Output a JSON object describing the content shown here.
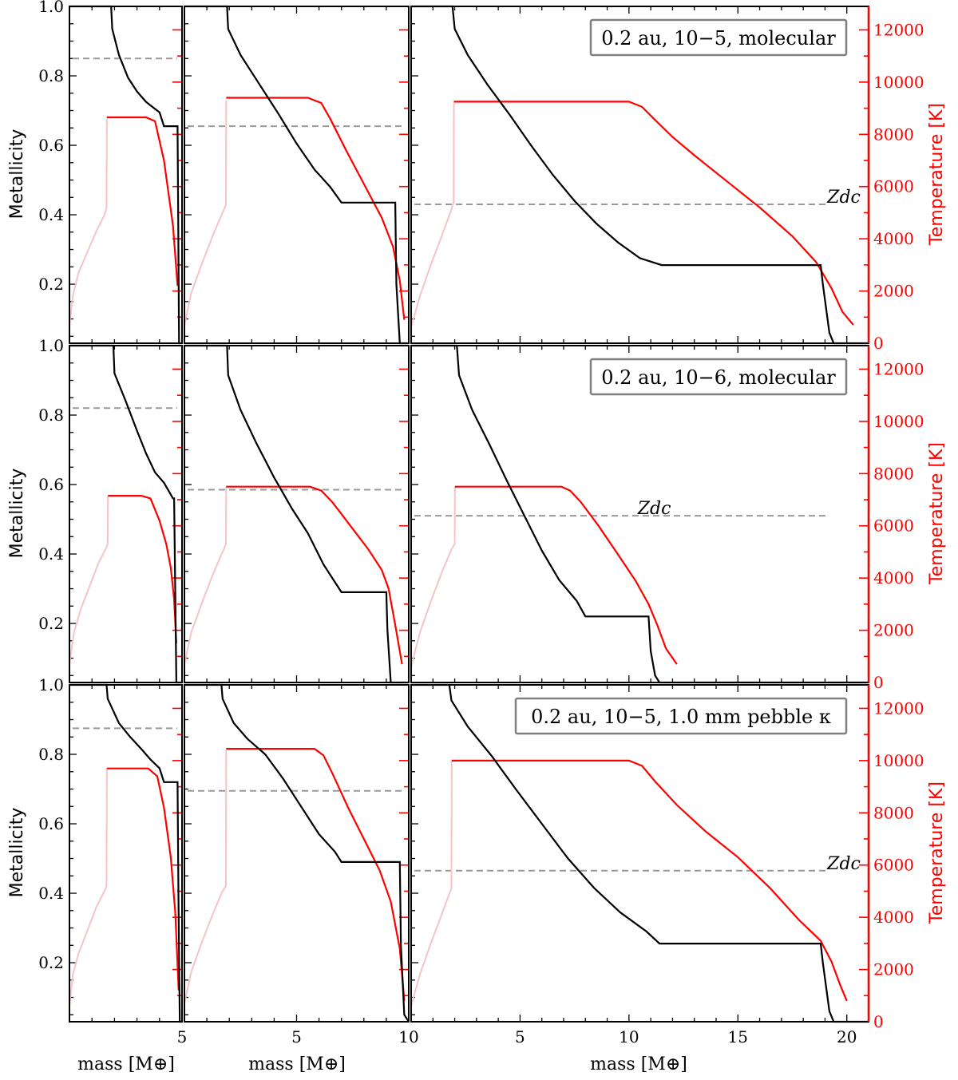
{
  "figure": {
    "y_left_label": "Metallicity",
    "y_right_label": "Temperature [K]",
    "x_label": "mass [M⊕]",
    "zdc_label": "Zdc",
    "colors": {
      "metallicity": "#000000",
      "temperature": "#ff0000",
      "temperature_early": "#f7c4c4",
      "zdc": "#999999"
    }
  },
  "chart_data": [
    {
      "type": "line",
      "row": 1,
      "annotation": "0.2 au, 10−5, molecular",
      "x_ticks": {
        "col1": [
          5
        ],
        "col2": [
          5,
          10
        ],
        "col3": [
          5,
          10,
          15,
          20
        ]
      },
      "xlim": {
        "col1": [
          0,
          5
        ],
        "col2": [
          0,
          10
        ],
        "col3": [
          0,
          21
        ]
      },
      "ylim_left": [
        0.03,
        1.0
      ],
      "ylim_right": [
        0,
        12900
      ],
      "y_left_ticks": [
        0.2,
        0.4,
        0.6,
        0.8,
        1.0
      ],
      "y_right_ticks": [
        0,
        2000,
        4000,
        6000,
        8000,
        10000,
        12000
      ],
      "zdc": {
        "col1": 0.85,
        "col2": 0.655,
        "col3": 0.43
      },
      "series": [
        {
          "column": 1,
          "metallicity": {
            "x": [
              0,
              1.85,
              1.9,
              2.2,
              2.6,
              3.0,
              3.4,
              3.7,
              4.0,
              4.2,
              4.8,
              4.83,
              4.87,
              5.0
            ],
            "y": [
              1.0,
              1.0,
              0.935,
              0.86,
              0.795,
              0.755,
              0.725,
              0.71,
              0.695,
              0.655,
              0.655,
              0.4,
              0.03,
              0.03
            ]
          },
          "temperature_early": {
            "x": [
              0,
              0.15,
              0.4,
              0.8,
              1.2,
              1.55,
              1.65,
              1.66
            ],
            "y": [
              700,
              1800,
              2700,
              3500,
              4300,
              4900,
              5200,
              8600
            ]
          },
          "temperature": {
            "x": [
              1.66,
              2.3,
              3.4,
              3.8,
              4.2,
              4.6,
              4.8
            ],
            "y": [
              8650,
              8650,
              8650,
              8500,
              7000,
              4500,
              2200
            ]
          }
        },
        {
          "column": 2,
          "metallicity": {
            "x": [
              0,
              1.9,
              1.95,
              2.5,
              3.3,
              4.2,
              5.0,
              5.8,
              6.5,
              7.0,
              9.4,
              9.45,
              9.6,
              10.0
            ],
            "y": [
              1.0,
              1.0,
              0.935,
              0.86,
              0.78,
              0.69,
              0.605,
              0.53,
              0.48,
              0.435,
              0.435,
              0.2,
              0.03,
              0.03
            ]
          },
          "temperature_early": {
            "x": [
              0,
              0.3,
              0.8,
              1.3,
              1.75,
              1.85,
              1.86
            ],
            "y": [
              700,
              1900,
              3100,
              4200,
              5100,
              5300,
              9300
            ]
          },
          "temperature": {
            "x": [
              1.86,
              3.0,
              5.5,
              6.1,
              6.5,
              7.2,
              8.0,
              8.8,
              9.3,
              9.6,
              9.8
            ],
            "y": [
              9400,
              9400,
              9400,
              9200,
              8600,
              7400,
              6100,
              4800,
              3700,
              2400,
              900
            ]
          }
        },
        {
          "column": 3,
          "metallicity": {
            "x": [
              0,
              1.9,
              2.0,
              2.6,
              3.5,
              4.5,
              5.5,
              6.5,
              7.5,
              8.5,
              9.5,
              10.5,
              11.5,
              18.8,
              18.9,
              19.2,
              19.4,
              21.0
            ],
            "y": [
              1.0,
              1.0,
              0.935,
              0.86,
              0.775,
              0.69,
              0.6,
              0.515,
              0.44,
              0.375,
              0.32,
              0.275,
              0.255,
              0.255,
              0.2,
              0.06,
              0.03,
              0.03
            ]
          },
          "temperature_early": {
            "x": [
              0,
              0.4,
              0.9,
              1.4,
              1.8,
              1.95,
              1.96
            ],
            "y": [
              600,
              1800,
              3000,
              4100,
              5000,
              5400,
              9200
            ]
          },
          "temperature": {
            "x": [
              1.96,
              4.0,
              10.0,
              10.6,
              11.2,
              12.0,
              13.0,
              14.5,
              16.0,
              17.5,
              18.6,
              19.3,
              19.8,
              20.3
            ],
            "y": [
              9250,
              9250,
              9250,
              9050,
              8550,
              7900,
              7200,
              6200,
              5200,
              4100,
              3100,
              2100,
              1200,
              700
            ]
          }
        }
      ]
    },
    {
      "type": "line",
      "row": 2,
      "annotation": "0.2 au, 10−6, molecular",
      "x_ticks": {
        "col1": [
          5
        ],
        "col2": [
          5,
          10
        ],
        "col3": [
          5,
          10,
          15,
          20
        ]
      },
      "xlim": {
        "col1": [
          0,
          5
        ],
        "col2": [
          0,
          10
        ],
        "col3": [
          0,
          21
        ]
      },
      "ylim_left": [
        0.03,
        1.0
      ],
      "ylim_right": [
        0,
        12900
      ],
      "y_left_ticks": [
        0.2,
        0.4,
        0.6,
        0.8,
        1.0
      ],
      "y_right_ticks": [
        0,
        2000,
        4000,
        6000,
        8000,
        10000,
        12000
      ],
      "zdc": {
        "col1": 0.82,
        "col2": 0.585,
        "col3": 0.51
      },
      "series": [
        {
          "column": 1,
          "metallicity": {
            "x": [
              0,
              1.95,
              2.0,
              2.5,
              3.0,
              3.4,
              3.8,
              4.2,
              4.6,
              4.65,
              4.75,
              5.0
            ],
            "y": [
              1.0,
              1.0,
              0.92,
              0.84,
              0.755,
              0.69,
              0.635,
              0.605,
              0.56,
              0.56,
              0.03,
              0.03
            ]
          },
          "temperature_early": {
            "x": [
              0,
              0.2,
              0.5,
              0.9,
              1.3,
              1.6,
              1.7,
              1.71
            ],
            "y": [
              700,
              1900,
              2800,
              3700,
              4600,
              5100,
              5300,
              7150
            ]
          },
          "temperature": {
            "x": [
              1.71,
              2.4,
              3.2,
              3.6,
              4.0,
              4.3,
              4.5,
              4.65,
              4.75
            ],
            "y": [
              7150,
              7150,
              7150,
              7050,
              6200,
              5300,
              4400,
              3200,
              1500
            ]
          }
        },
        {
          "column": 2,
          "metallicity": {
            "x": [
              0,
              1.9,
              1.95,
              2.5,
              3.2,
              4.0,
              4.8,
              5.5,
              6.2,
              7.0,
              9.0,
              9.05,
              9.2,
              10.0
            ],
            "y": [
              1.0,
              1.0,
              0.915,
              0.815,
              0.72,
              0.62,
              0.53,
              0.46,
              0.37,
              0.29,
              0.29,
              0.18,
              0.03,
              0.03
            ]
          },
          "temperature_early": {
            "x": [
              0,
              0.3,
              0.8,
              1.3,
              1.7,
              1.85,
              1.86
            ],
            "y": [
              700,
              1900,
              3100,
              4200,
              5000,
              5300,
              7500
            ]
          },
          "temperature": {
            "x": [
              1.86,
              3.5,
              5.6,
              6.1,
              6.6,
              7.4,
              8.2,
              8.8,
              9.1,
              9.4,
              9.7
            ],
            "y": [
              7500,
              7500,
              7500,
              7350,
              6900,
              6000,
              5100,
              4300,
              3600,
              2200,
              700
            ]
          }
        },
        {
          "column": 3,
          "metallicity": {
            "x": [
              0,
              2.1,
              2.2,
              2.8,
              3.6,
              4.4,
              5.2,
              6.0,
              6.8,
              7.6,
              8.0,
              10.9,
              11.0,
              11.2,
              11.4,
              21.0
            ],
            "y": [
              1.0,
              1.0,
              0.915,
              0.815,
              0.715,
              0.61,
              0.51,
              0.41,
              0.325,
              0.265,
              0.22,
              0.22,
              0.12,
              0.05,
              0.03,
              0.03
            ]
          },
          "temperature_early": {
            "x": [
              0,
              0.4,
              0.9,
              1.4,
              1.85,
              2.0,
              2.01
            ],
            "y": [
              600,
              1900,
              3100,
              4200,
              5100,
              5300,
              7500
            ]
          },
          "temperature": {
            "x": [
              2.01,
              4.0,
              6.9,
              7.3,
              7.8,
              8.6,
              9.5,
              10.3,
              10.9,
              11.3,
              11.7,
              12.2
            ],
            "y": [
              7500,
              7500,
              7500,
              7350,
              6900,
              6000,
              4900,
              3900,
              3000,
              2200,
              1300,
              700
            ]
          }
        }
      ]
    },
    {
      "type": "line",
      "row": 3,
      "annotation": "0.2 au, 10−5, 1.0 mm pebble κ",
      "x_ticks": {
        "col1": [
          5
        ],
        "col2": [
          5,
          10
        ],
        "col3": [
          5,
          10,
          15,
          20
        ]
      },
      "xlim": {
        "col1": [
          0,
          5
        ],
        "col2": [
          0,
          10
        ],
        "col3": [
          0,
          21
        ]
      },
      "ylim_left": [
        0.03,
        1.0
      ],
      "ylim_right": [
        0,
        12900
      ],
      "y_left_ticks": [
        0.2,
        0.4,
        0.6,
        0.8,
        1.0
      ],
      "y_right_ticks": [
        0,
        2000,
        4000,
        6000,
        8000,
        10000,
        12000
      ],
      "x_label": "mass [M⊕]",
      "zdc": {
        "col1": 0.875,
        "col2": 0.695,
        "col3": 0.465
      },
      "series": [
        {
          "column": 1,
          "metallicity": {
            "x": [
              0,
              1.65,
              1.7,
              2.2,
              2.7,
              3.2,
              3.6,
              4.0,
              4.2,
              4.8,
              4.84,
              4.9,
              5.0
            ],
            "y": [
              1.0,
              1.0,
              0.96,
              0.89,
              0.85,
              0.815,
              0.785,
              0.76,
              0.72,
              0.72,
              0.4,
              0.03,
              0.03
            ]
          },
          "temperature_early": {
            "x": [
              0,
              0.15,
              0.4,
              0.8,
              1.2,
              1.55,
              1.65,
              1.66
            ],
            "y": [
              600,
              1800,
              2600,
              3500,
              4400,
              5000,
              5200,
              9700
            ]
          },
          "temperature": {
            "x": [
              1.66,
              2.5,
              3.5,
              3.9,
              4.2,
              4.5,
              4.7,
              4.85
            ],
            "y": [
              9700,
              9700,
              9700,
              9400,
              8200,
              6300,
              4200,
              1200
            ]
          }
        },
        {
          "column": 2,
          "metallicity": {
            "x": [
              0,
              1.65,
              1.7,
              2.2,
              2.8,
              3.6,
              4.4,
              5.2,
              6.0,
              6.7,
              7.0,
              9.6,
              9.65,
              9.8,
              10.0
            ],
            "y": [
              1.0,
              1.0,
              0.96,
              0.89,
              0.845,
              0.8,
              0.73,
              0.65,
              0.57,
              0.52,
              0.49,
              0.49,
              0.25,
              0.05,
              0.03
            ]
          },
          "temperature_early": {
            "x": [
              0,
              0.3,
              0.8,
              1.3,
              1.7,
              1.85,
              1.86
            ],
            "y": [
              700,
              1900,
              3100,
              4200,
              5000,
              5200,
              10400
            ]
          },
          "temperature": {
            "x": [
              1.86,
              3.5,
              5.8,
              6.2,
              6.6,
              7.3,
              8.0,
              8.7,
              9.2,
              9.6,
              9.8
            ],
            "y": [
              10450,
              10450,
              10450,
              10200,
              9500,
              8200,
              7000,
              5800,
              4600,
              2800,
              800
            ]
          }
        },
        {
          "column": 3,
          "metallicity": {
            "x": [
              0,
              1.75,
              1.85,
              2.6,
              3.7,
              4.8,
              6.0,
              7.2,
              8.4,
              9.6,
              10.8,
              11.4,
              18.8,
              18.9,
              19.2,
              19.4,
              21.0
            ],
            "y": [
              1.0,
              1.0,
              0.955,
              0.88,
              0.795,
              0.7,
              0.6,
              0.5,
              0.415,
              0.345,
              0.29,
              0.255,
              0.255,
              0.2,
              0.06,
              0.03,
              0.03
            ]
          },
          "temperature_early": {
            "x": [
              0,
              0.4,
              0.9,
              1.4,
              1.75,
              1.85,
              1.86
            ],
            "y": [
              600,
              1800,
              3000,
              4100,
              4900,
              5100,
              10000
            ]
          },
          "temperature": {
            "x": [
              1.86,
              4.0,
              10.0,
              10.6,
              11.2,
              12.2,
              13.5,
              15.0,
              16.5,
              17.8,
              18.8,
              19.3,
              19.7,
              20.0
            ],
            "y": [
              10000,
              10000,
              10000,
              9800,
              9200,
              8300,
              7300,
              6300,
              5100,
              3900,
              3100,
              2300,
              1400,
              800
            ]
          }
        }
      ]
    }
  ]
}
